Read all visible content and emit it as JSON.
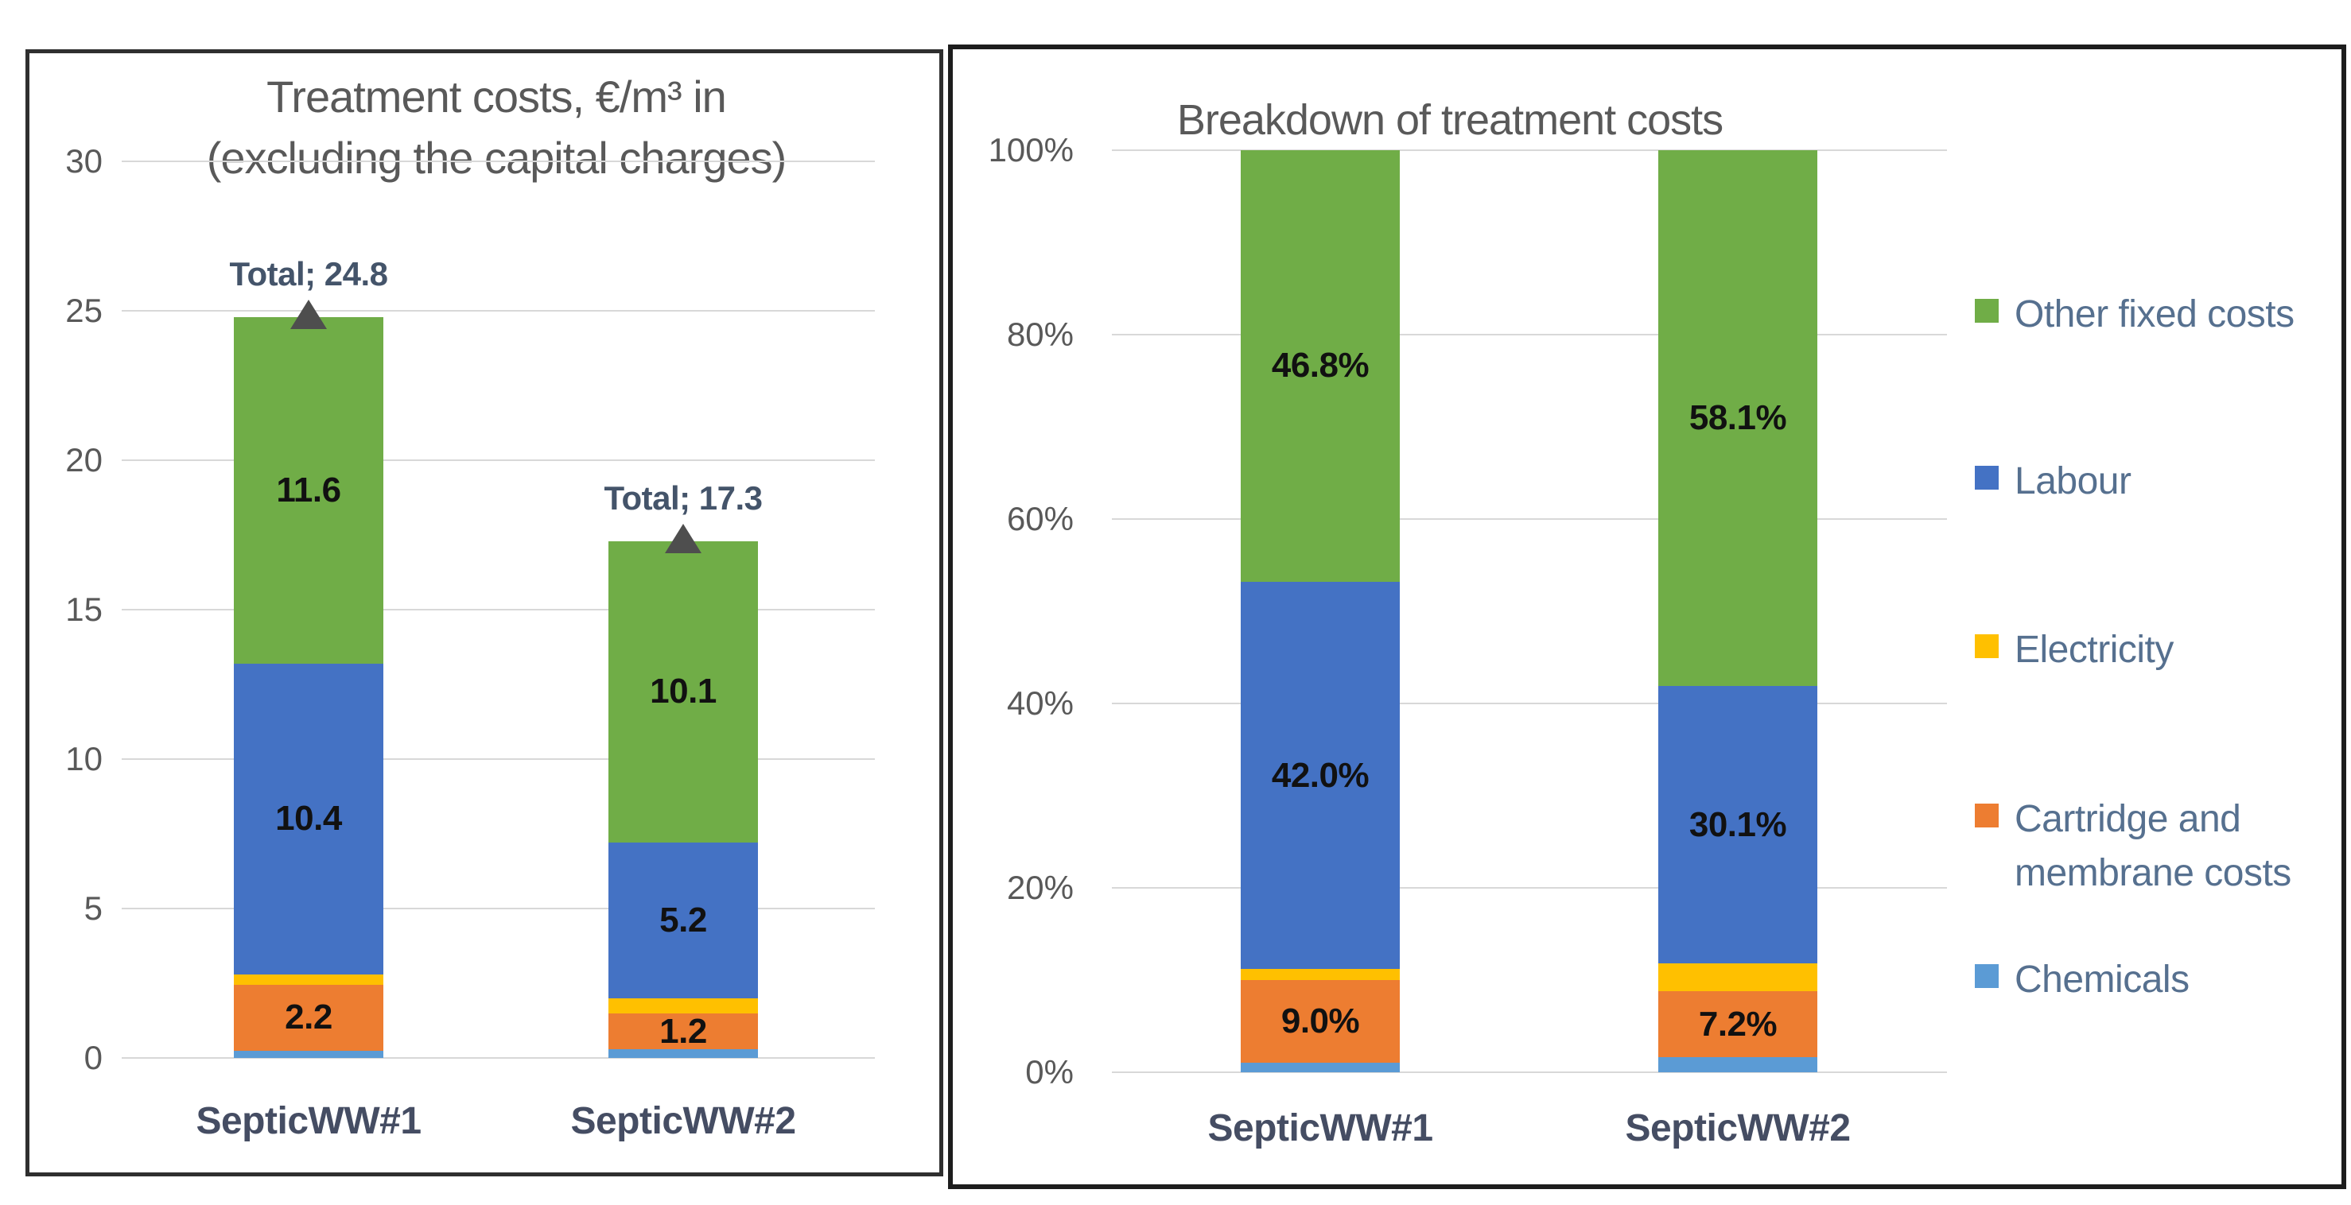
{
  "figure": {
    "kind": "two-panel stacked bar figure",
    "background": "#ffffff"
  },
  "chart_data": [
    {
      "type": "bar",
      "stacked": true,
      "title": "Treatment costs, €/m³ in (excluding the capital charges)",
      "title_lines": [
        "Treatment costs, €/m³ in",
        "(excluding the capital charges)"
      ],
      "categories": [
        "SepticWW#1",
        "SepticWW#2"
      ],
      "series": [
        {
          "name": "Chemicals",
          "color": "#5B9BD5",
          "values": [
            0.25,
            0.28
          ],
          "data_labels": [
            "",
            ""
          ]
        },
        {
          "name": "Cartridge and membrane costs",
          "color": "#ED7D31",
          "values": [
            2.2,
            1.2
          ],
          "data_labels": [
            "2.2",
            "1.2"
          ]
        },
        {
          "name": "Electricity",
          "color": "#FFC000",
          "values": [
            0.35,
            0.52
          ],
          "data_labels": [
            "",
            ""
          ]
        },
        {
          "name": "Labour",
          "color": "#4472C4",
          "values": [
            10.4,
            5.2
          ],
          "data_labels": [
            "10.4",
            "5.2"
          ]
        },
        {
          "name": "Other fixed costs",
          "color": "#70AD47",
          "values": [
            11.6,
            10.1
          ],
          "data_labels": [
            "11.6",
            "10.1"
          ]
        }
      ],
      "totals": {
        "series_name": "Total",
        "values": [
          24.8,
          17.3
        ],
        "labels": [
          "Total; 24.8",
          "Total; 17.3"
        ],
        "marker": "triangle-up",
        "marker_color": "#4e4e4e"
      },
      "xlabel": "",
      "ylabel": "",
      "ylim": [
        0,
        30
      ],
      "yticks": [
        0,
        5,
        10,
        15,
        20,
        25,
        30
      ],
      "ytick_labels": [
        "0",
        "5",
        "10",
        "15",
        "20",
        "25",
        "30"
      ],
      "grid": true,
      "legend_position": "none"
    },
    {
      "type": "bar",
      "stacked": true,
      "percent": true,
      "title": "Breakdown of treatment costs",
      "categories": [
        "SepticWW#1",
        "SepticWW#2"
      ],
      "series": [
        {
          "name": "Chemicals",
          "color": "#5B9BD5",
          "values": [
            1.0,
            1.6
          ],
          "data_labels": [
            "",
            ""
          ]
        },
        {
          "name": "Cartridge and membrane costs",
          "color": "#ED7D31",
          "values": [
            9.0,
            7.2
          ],
          "data_labels": [
            "9.0%",
            "7.2%"
          ]
        },
        {
          "name": "Electricity",
          "color": "#FFC000",
          "values": [
            1.2,
            3.0
          ],
          "data_labels": [
            "",
            ""
          ]
        },
        {
          "name": "Labour",
          "color": "#4472C4",
          "values": [
            42.0,
            30.1
          ],
          "data_labels": [
            "42.0%",
            "30.1%"
          ]
        },
        {
          "name": "Other fixed costs",
          "color": "#70AD47",
          "values": [
            46.8,
            58.1
          ],
          "data_labels": [
            "46.8%",
            "58.1%"
          ]
        }
      ],
      "xlabel": "",
      "ylabel": "",
      "ylim": [
        0,
        100
      ],
      "yticks": [
        0,
        20,
        40,
        60,
        80,
        100
      ],
      "ytick_labels": [
        "0%",
        "20%",
        "40%",
        "60%",
        "80%",
        "100%"
      ],
      "grid": true,
      "legend_position": "right",
      "legend": [
        {
          "label": "Other fixed costs",
          "color": "#70AD47"
        },
        {
          "label": "Labour",
          "color": "#4472C4"
        },
        {
          "label": "Electricity",
          "color": "#FFC000"
        },
        {
          "label": "Cartridge and membrane costs",
          "color": "#ED7D31"
        },
        {
          "label": "Chemicals",
          "color": "#5B9BD5"
        }
      ]
    }
  ],
  "colors": {
    "grid": "#d8d8d8",
    "axis_text": "#595959",
    "title_text": "#595959",
    "category_text": "#454d63",
    "total_text": "#44546a",
    "legend_text": "#56708f"
  }
}
